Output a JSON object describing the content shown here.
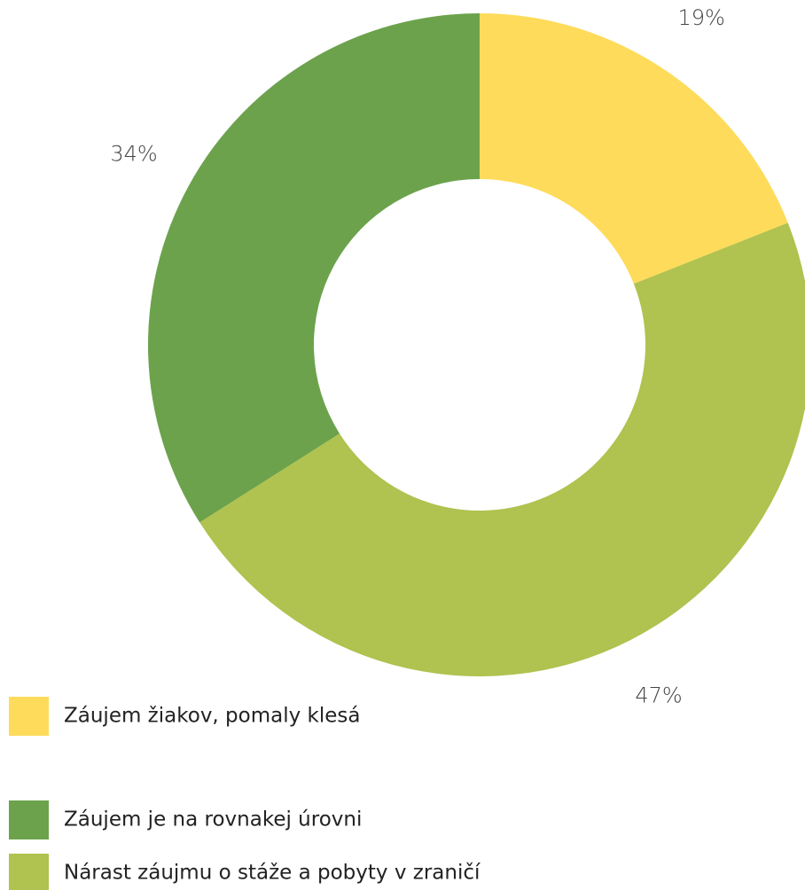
{
  "chart_data": {
    "type": "donut",
    "categories": [
      "Záujem žiakov, pomaly klesá",
      "Záujem je na rovnakej úrovni",
      "Nárast záujmu o stáže a pobyty v zraničí"
    ],
    "values": [
      19,
      34,
      47
    ],
    "value_labels": [
      "19%",
      "34%",
      "47%"
    ],
    "colors": [
      "#fedb5a",
      "#6ca24c",
      "#b0c24f"
    ],
    "direction": "counterclockwise"
  }
}
